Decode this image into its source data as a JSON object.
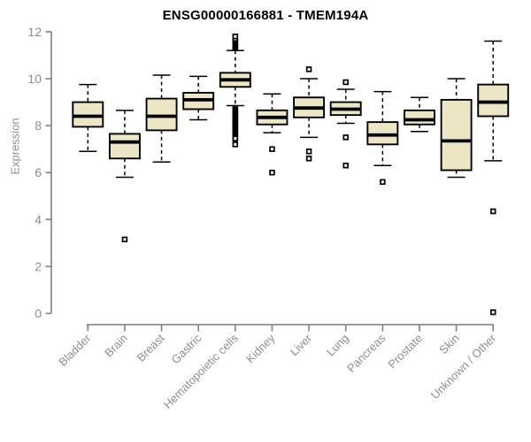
{
  "chart_data": {
    "type": "boxplot",
    "title": "ENSG00000166881 - TMEM194A",
    "ylabel": "Expression",
    "xlabel": "",
    "ylim": [
      0,
      12
    ],
    "yticks": [
      0,
      2,
      4,
      6,
      8,
      10,
      12
    ],
    "grid": false,
    "legend": "none",
    "categories": [
      "Bladder",
      "Brain",
      "Breast",
      "Gastric",
      "Hematopoietic cells",
      "Kidney",
      "Liver",
      "Lung",
      "Pancreas",
      "Prostate",
      "Skin",
      "Unknown / Other"
    ],
    "series": [
      {
        "name": "Bladder",
        "whislo": 6.9,
        "q1": 7.95,
        "med": 8.4,
        "q3": 9.0,
        "whishi": 9.75,
        "outliers": []
      },
      {
        "name": "Brain",
        "whislo": 5.8,
        "q1": 6.6,
        "med": 7.3,
        "q3": 7.65,
        "whishi": 8.65,
        "outliers": [
          3.15
        ]
      },
      {
        "name": "Breast",
        "whislo": 6.45,
        "q1": 7.8,
        "med": 8.4,
        "q3": 9.15,
        "whishi": 10.15,
        "outliers": []
      },
      {
        "name": "Gastric",
        "whislo": 8.25,
        "q1": 8.7,
        "med": 9.1,
        "q3": 9.4,
        "whishi": 10.1,
        "outliers": []
      },
      {
        "name": "Hematopoietic cells",
        "whislo": 8.85,
        "q1": 9.65,
        "med": 9.95,
        "q3": 10.25,
        "whishi": 11.2,
        "outliers": [
          11.3,
          11.35,
          11.4,
          11.45,
          11.5,
          11.55,
          11.6,
          11.65,
          11.7,
          11.8,
          8.7,
          8.65,
          8.6,
          8.55,
          8.5,
          8.45,
          8.4,
          8.35,
          8.3,
          8.25,
          8.2,
          8.15,
          8.1,
          8.05,
          8.0,
          7.95,
          7.9,
          7.85,
          7.8,
          7.75,
          7.7,
          7.65,
          7.6,
          7.55,
          7.5,
          7.45,
          7.2
        ]
      },
      {
        "name": "Kidney",
        "whislo": 7.7,
        "q1": 8.05,
        "med": 8.35,
        "q3": 8.65,
        "whishi": 9.35,
        "outliers": [
          7.0,
          6.0
        ]
      },
      {
        "name": "Liver",
        "whislo": 7.5,
        "q1": 8.35,
        "med": 8.75,
        "q3": 9.2,
        "whishi": 10.0,
        "outliers": [
          10.4,
          6.9,
          6.6
        ]
      },
      {
        "name": "Lung",
        "whislo": 8.1,
        "q1": 8.45,
        "med": 8.7,
        "q3": 9.0,
        "whishi": 9.55,
        "outliers": [
          9.85,
          7.5,
          6.3
        ]
      },
      {
        "name": "Pancreas",
        "whislo": 6.3,
        "q1": 7.2,
        "med": 7.6,
        "q3": 8.15,
        "whishi": 9.45,
        "outliers": [
          5.6
        ]
      },
      {
        "name": "Prostate",
        "whislo": 7.75,
        "q1": 8.05,
        "med": 8.25,
        "q3": 8.65,
        "whishi": 9.2,
        "outliers": []
      },
      {
        "name": "Skin",
        "whislo": 5.8,
        "q1": 6.1,
        "med": 7.35,
        "q3": 9.1,
        "whishi": 10.0,
        "outliers": []
      },
      {
        "name": "Unknown / Other",
        "whislo": 6.5,
        "q1": 8.4,
        "med": 9.0,
        "q3": 9.75,
        "whishi": 11.6,
        "outliers": [
          4.35,
          0.05
        ]
      }
    ],
    "colors": {
      "box_fill": "#EDE6C4",
      "box_stroke": "#000000",
      "median": "#000000",
      "whisker": "#000000",
      "axis": "#808080",
      "tick_label": "#8B8F96",
      "title": "#000000",
      "background": "#FFFFFF"
    }
  }
}
